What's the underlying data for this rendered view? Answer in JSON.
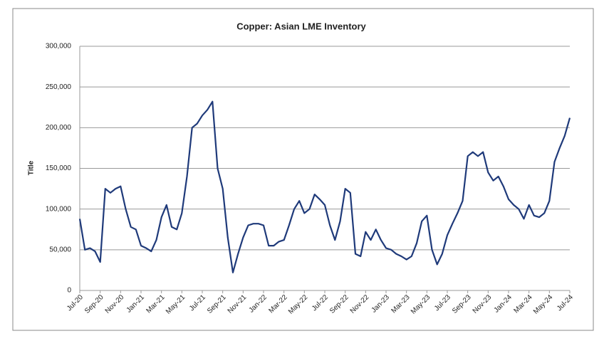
{
  "chart_data": {
    "type": "line",
    "title": "Copper: Asian LME Inventory",
    "y_label": "Title",
    "categories": [
      "Jul-20",
      null,
      null,
      null,
      "Sep-20",
      null,
      null,
      null,
      "Nov-20",
      null,
      null,
      null,
      "Jan-21",
      null,
      null,
      null,
      "Mar-21",
      null,
      null,
      null,
      "May-21",
      null,
      null,
      null,
      "Jul-21",
      null,
      null,
      null,
      "Sep-21",
      null,
      null,
      null,
      "Nov-21",
      null,
      null,
      null,
      "Jan-22",
      null,
      null,
      null,
      "Mar-22",
      null,
      null,
      null,
      "May-22",
      null,
      null,
      null,
      "Jul-22",
      null,
      null,
      null,
      "Sep-22",
      null,
      null,
      null,
      "Nov-22",
      null,
      null,
      null,
      "Jan-23",
      null,
      null,
      null,
      "Mar-23",
      null,
      null,
      null,
      "May-23",
      null,
      null,
      null,
      "Jul-23",
      null,
      null,
      null,
      "Sep-23",
      null,
      null,
      null,
      "Nov-23",
      null,
      null,
      null,
      "Jan-24",
      null,
      null,
      null,
      "Mar-24",
      null,
      null,
      null,
      "May-24",
      null,
      null,
      null,
      "Jul-24"
    ],
    "values": [
      88000,
      50000,
      52000,
      48000,
      35000,
      125000,
      120000,
      125000,
      128000,
      100000,
      78000,
      75000,
      55000,
      52000,
      48000,
      62000,
      90000,
      105000,
      78000,
      75000,
      95000,
      140000,
      200000,
      205000,
      215000,
      222000,
      232000,
      150000,
      125000,
      65000,
      22000,
      45000,
      65000,
      80000,
      82000,
      82000,
      80000,
      55000,
      55000,
      60000,
      62000,
      80000,
      100000,
      110000,
      95000,
      100000,
      118000,
      112000,
      105000,
      80000,
      62000,
      85000,
      125000,
      120000,
      45000,
      42000,
      72000,
      62000,
      75000,
      62000,
      52000,
      50000,
      45000,
      42000,
      38000,
      42000,
      58000,
      85000,
      92000,
      50000,
      32000,
      45000,
      68000,
      82000,
      95000,
      110000,
      165000,
      170000,
      165000,
      170000,
      145000,
      135000,
      140000,
      128000,
      112000,
      105000,
      100000,
      88000,
      105000,
      92000,
      90000,
      95000,
      110000,
      158000,
      175000,
      190000,
      212000
    ],
    "color": "#1f3a7a",
    "ylim": [
      0,
      300000
    ],
    "yticks": [
      0,
      {
        "value": 50000,
        "label": "50,000"
      },
      {
        "value": 100000,
        "label": "100,000"
      },
      {
        "value": 150000,
        "label": "150,000"
      },
      {
        "value": 200000,
        "label": "200,000"
      },
      {
        "value": 250000,
        "label": "250,000"
      },
      {
        "value": 300000,
        "label": "300,000"
      }
    ],
    "grid": true
  }
}
